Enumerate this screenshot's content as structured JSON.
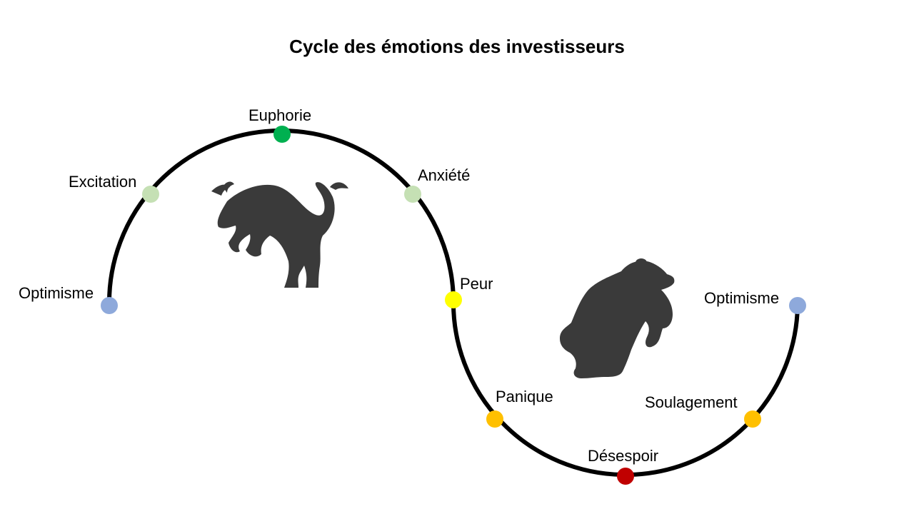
{
  "title": "Cycle des émotions des investisseurs",
  "stages": [
    {
      "label": "Optimisme",
      "color": "#8EA9DB"
    },
    {
      "label": "Excitation",
      "color": "#C5E0B4"
    },
    {
      "label": "Euphorie",
      "color": "#00B050"
    },
    {
      "label": "Anxiété",
      "color": "#C5E0B4"
    },
    {
      "label": "Peur",
      "color": "#FFFF00"
    },
    {
      "label": "Panique",
      "color": "#FFC000"
    },
    {
      "label": "Désespoir",
      "color": "#C00000"
    },
    {
      "label": "Soulagement",
      "color": "#FFC000"
    },
    {
      "label": "Optimisme",
      "color": "#8EA9DB"
    }
  ],
  "icons": {
    "bull": "bull-icon",
    "bear": "bear-icon",
    "fill": "#3A3A3A"
  }
}
